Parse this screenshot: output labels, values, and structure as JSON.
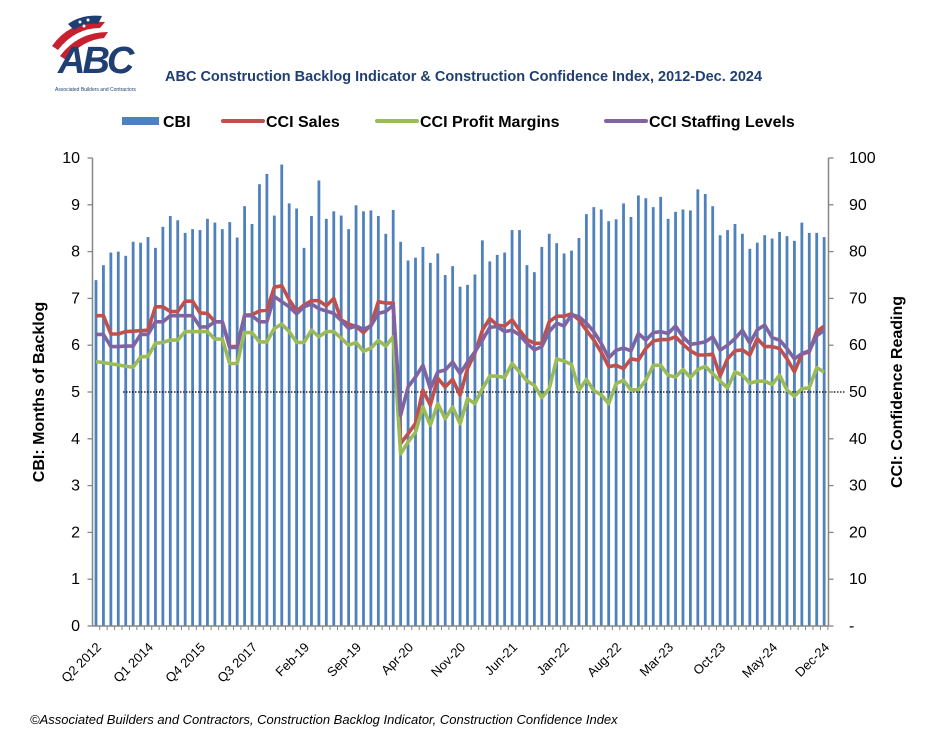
{
  "logo": {
    "text": "ABC",
    "subtext": "Associated Builders and Contractors"
  },
  "footnote": "©Associated Builders and Contractors, Construction Backlog Indicator, Construction Confidence Index",
  "chart_data": {
    "type": "bar+line",
    "title": "ABC Construction Backlog Indicator & Construction Confidence Index, 2012-Dec. 2024",
    "ylabel_left": "CBI: Months of Backlog",
    "ylabel_right": "CCI: Confidence Reading",
    "ylim_left": [
      0,
      10
    ],
    "ylim_right": [
      0,
      100
    ],
    "yticks_left": [
      "0",
      "1",
      "2",
      "3",
      "4",
      "5",
      "6",
      "7",
      "8",
      "9",
      "10"
    ],
    "yticks_right": [
      "-",
      "10",
      "20",
      "30",
      "40",
      "50",
      "60",
      "70",
      "80",
      "90",
      "100"
    ],
    "reference_line": {
      "axis": "right",
      "value": 50,
      "style": "dotted"
    },
    "legend_position": "top",
    "grid": false,
    "xtick_labels": [
      "Q2 2012",
      "Q1 2014",
      "Q4 2015",
      "Q3 2017",
      "Feb-19",
      "Sep-19",
      "Apr-20",
      "Nov-20",
      "Jun-21",
      "Jan-22",
      "Aug-22",
      "Mar-23",
      "Oct-23",
      "May-24",
      "Dec-24"
    ],
    "categories": [
      "Q2 2012",
      "Q3 2012",
      "Q4 2012",
      "Q1 2013",
      "Q2 2013",
      "Q3 2013",
      "Q4 2013",
      "Q1 2014",
      "Q2 2014",
      "Q3 2014",
      "Q4 2014",
      "Q1 2015",
      "Q2 2015",
      "Q3 2015",
      "Q4 2015",
      "Q1 2016",
      "Q2 2016",
      "Q3 2016",
      "Q4 2016",
      "Q1 2017",
      "Q2 2017",
      "Q3 2017",
      "Q4 2017",
      "Q1 2018",
      "Q2 2018",
      "Q3 2018",
      "Q4 2018",
      "Jan-19",
      "Feb-19",
      "Mar-19",
      "Apr-19",
      "May-19",
      "Jun-19",
      "Jul-19",
      "Aug-19",
      "Sep-19",
      "Oct-19",
      "Nov-19",
      "Dec-19",
      "Jan-20",
      "Feb-20",
      "Mar-20",
      "Apr-20",
      "May-20",
      "Jun-20",
      "Jul-20",
      "Aug-20",
      "Sep-20",
      "Oct-20",
      "Nov-20",
      "Dec-20",
      "Jan-21",
      "Feb-21",
      "Mar-21",
      "Apr-21",
      "May-21",
      "Jun-21",
      "Jul-21",
      "Aug-21",
      "Sep-21",
      "Oct-21",
      "Nov-21",
      "Dec-21",
      "Jan-22",
      "Feb-22",
      "Mar-22",
      "Apr-22",
      "May-22",
      "Jun-22",
      "Jul-22",
      "Aug-22",
      "Sep-22",
      "Oct-22",
      "Nov-22",
      "Dec-22",
      "Jan-23",
      "Feb-23",
      "Mar-23",
      "Apr-23",
      "May-23",
      "Jun-23",
      "Jul-23",
      "Aug-23",
      "Sep-23",
      "Oct-23",
      "Nov-23",
      "Dec-23",
      "Jan-24",
      "Feb-24",
      "Mar-24",
      "Apr-24",
      "May-24",
      "Jun-24",
      "Jul-24",
      "Aug-24",
      "Sep-24",
      "Oct-24",
      "Nov-24",
      "Dec-24"
    ],
    "series": [
      {
        "name": "CBI",
        "type": "bar",
        "axis": "left",
        "color": "#4f81bd",
        "values": [
          7.39,
          7.71,
          7.98,
          8.0,
          7.91,
          8.21,
          8.19,
          8.31,
          8.08,
          8.53,
          8.76,
          8.67,
          8.4,
          8.48,
          8.46,
          8.7,
          8.62,
          8.48,
          8.63,
          8.3,
          8.97,
          8.59,
          9.44,
          9.66,
          8.77,
          9.86,
          9.03,
          8.92,
          8.08,
          8.76,
          9.52,
          8.7,
          8.86,
          8.77,
          8.48,
          8.99,
          8.86,
          8.88,
          8.76,
          8.38,
          8.89,
          8.21,
          7.81,
          7.87,
          8.1,
          7.76,
          7.96,
          7.5,
          7.69,
          7.25,
          7.29,
          7.51,
          8.24,
          7.79,
          7.93,
          7.98,
          8.46,
          8.46,
          7.71,
          7.56,
          8.1,
          8.38,
          8.18,
          7.96,
          8.02,
          8.29,
          8.8,
          8.95,
          8.9,
          8.65,
          8.69,
          9.03,
          8.74,
          9.2,
          9.14,
          8.95,
          9.17,
          8.7,
          8.85,
          8.9,
          8.88,
          9.33,
          9.23,
          8.97,
          8.35,
          8.46,
          8.59,
          8.38,
          8.06,
          8.19,
          8.35,
          8.28,
          8.42,
          8.33,
          8.23,
          8.62,
          8.4,
          8.4,
          8.31
        ]
      },
      {
        "name": "CCI Sales",
        "type": "line",
        "axis": "right",
        "color": "#c0504d",
        "values": [
          66.3,
          66.3,
          62.4,
          62.4,
          62.9,
          63.0,
          63.1,
          63.2,
          68.2,
          68.2,
          67.2,
          67.2,
          69.4,
          69.4,
          66.9,
          66.8,
          65.0,
          65.0,
          59.7,
          59.7,
          66.4,
          66.5,
          67.3,
          67.5,
          72.4,
          72.7,
          69.7,
          67.3,
          68.6,
          69.5,
          69.5,
          68.4,
          70.0,
          65.4,
          64.5,
          64.0,
          62.7,
          64.3,
          69.3,
          69.0,
          69.0,
          39.0,
          41.1,
          43.3,
          50.4,
          47.2,
          52.9,
          51.1,
          52.7,
          49.3,
          55.0,
          58.3,
          63.2,
          65.7,
          64.3,
          64.1,
          65.4,
          63.2,
          61.2,
          60.4,
          60.4,
          65.0,
          66.2,
          66.2,
          66.7,
          65.4,
          63.2,
          61.1,
          58.5,
          55.4,
          55.7,
          55.0,
          57.1,
          56.8,
          59.3,
          60.9,
          61.2,
          61.2,
          61.8,
          60.2,
          58.8,
          57.9,
          57.9,
          58.1,
          53.4,
          57.1,
          58.8,
          59.0,
          57.9,
          61.4,
          59.7,
          59.7,
          59.3,
          57.1,
          54.3,
          58.1,
          58.6,
          62.9,
          64.1
        ]
      },
      {
        "name": "CCI Profit Margins",
        "type": "line",
        "axis": "right",
        "color": "#9bbb59",
        "values": [
          56.5,
          56.3,
          56.0,
          55.8,
          55.5,
          55.3,
          57.5,
          57.6,
          60.4,
          60.6,
          61.1,
          61.1,
          62.9,
          62.9,
          62.9,
          62.9,
          61.3,
          61.3,
          56.1,
          56.1,
          62.7,
          62.7,
          60.7,
          60.7,
          63.6,
          64.5,
          62.9,
          60.6,
          60.6,
          63.2,
          61.8,
          62.9,
          62.9,
          61.5,
          60.0,
          60.6,
          58.7,
          59.4,
          61.0,
          59.8,
          61.8,
          36.8,
          39.3,
          41.4,
          46.8,
          42.9,
          47.5,
          44.3,
          46.8,
          43.2,
          48.6,
          47.5,
          50.7,
          53.4,
          53.4,
          53.1,
          56.1,
          54.3,
          52.4,
          51.4,
          48.8,
          50.7,
          57.1,
          56.6,
          55.9,
          50.4,
          52.7,
          50.3,
          49.4,
          47.5,
          51.8,
          52.5,
          50.4,
          50.5,
          52.5,
          55.7,
          55.7,
          53.6,
          53.2,
          54.8,
          53.1,
          54.8,
          55.5,
          53.9,
          52.3,
          50.9,
          54.3,
          53.6,
          51.9,
          52.3,
          52.3,
          51.6,
          53.6,
          50.4,
          49.1,
          50.7,
          50.9,
          55.2,
          54.3
        ]
      },
      {
        "name": "CCI Staffing Levels",
        "type": "line",
        "axis": "right",
        "color": "#8064a2",
        "values": [
          62.3,
          62.3,
          59.7,
          59.7,
          59.8,
          59.8,
          62.3,
          62.3,
          65.0,
          65.0,
          66.3,
          66.3,
          66.3,
          66.3,
          63.9,
          63.9,
          65.0,
          65.0,
          59.5,
          59.5,
          66.3,
          66.3,
          65.0,
          65.0,
          70.4,
          69.3,
          68.2,
          66.7,
          68.2,
          68.8,
          67.8,
          67.3,
          66.8,
          65.3,
          63.6,
          64.1,
          63.4,
          64.1,
          66.8,
          67.2,
          68.6,
          45.0,
          51.1,
          53.2,
          55.7,
          50.7,
          54.3,
          54.7,
          56.4,
          53.9,
          56.4,
          58.6,
          61.1,
          63.8,
          64.0,
          62.9,
          63.2,
          62.2,
          60.4,
          59.0,
          59.7,
          62.9,
          64.7,
          64.1,
          66.5,
          66.1,
          64.7,
          62.9,
          60.4,
          57.3,
          58.9,
          59.4,
          58.8,
          62.5,
          61.1,
          62.7,
          62.9,
          62.5,
          64.1,
          61.8,
          60.2,
          60.4,
          60.7,
          61.8,
          58.9,
          60.0,
          61.4,
          63.2,
          60.4,
          63.3,
          64.3,
          61.6,
          61.1,
          59.3,
          57.1,
          58.2,
          58.8,
          62.0,
          63.2
        ]
      }
    ]
  }
}
